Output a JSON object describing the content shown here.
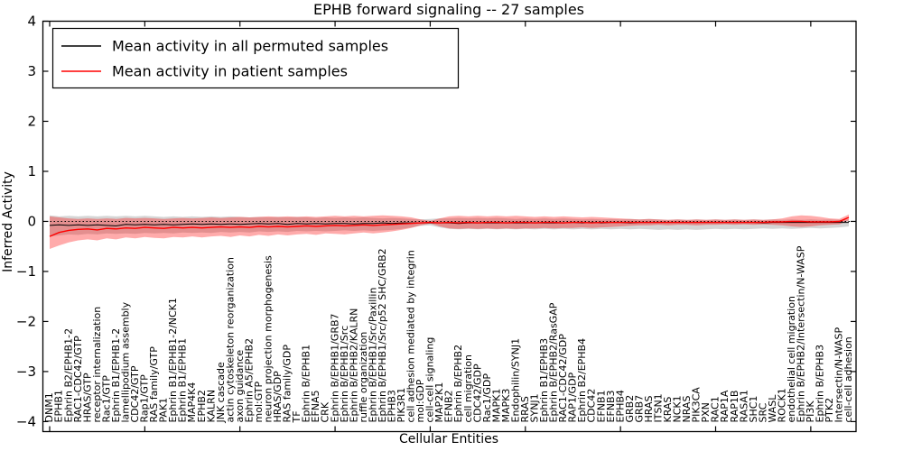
{
  "chart_data": {
    "type": "line",
    "title": "EPHB forward signaling -- 27 samples",
    "xlabel": "Cellular Entities",
    "ylabel": "Inferred Activity",
    "ylim": [
      -4.2,
      4.0
    ],
    "yticks": [
      -4,
      -3,
      -2,
      -1,
      0,
      1,
      2,
      3,
      4
    ],
    "x_tick_step": 10,
    "grid": false,
    "legend_position": "upper left",
    "reference_line": {
      "y": 0,
      "style": "dotted",
      "color": "#000000"
    },
    "categories": [
      "DNM1",
      "EPHB1",
      "Ephrin B2/EPHB1-2",
      "RAC1-CDC42/GTP",
      "HRAS/GTP",
      "receptor internalization",
      "Rac1/GTP",
      "Ephrin B1/EPHB1-2",
      "lamellipodium assembly",
      "CDC42/GTP",
      "Rap1/GTP",
      "RAS family/GTP",
      "PAK1",
      "Ephrin B1/EPHB1-2/NCK1",
      "Ephrin B1/EPHB1",
      "MAP4K4",
      "EPHB2",
      "KALRN",
      "JNK cascade",
      "actin cytoskeleton reorganization",
      "axon guidance",
      "Ephrin A5/EPHB2",
      "mol:GTP",
      "neuron projection morphogenesis",
      "HRAS/GDP",
      "RAS family/GDP",
      "TF",
      "Ephrin B/EPHB1",
      "EFNA5",
      "CRK",
      "Ephrin B/EPHB1/GRB7",
      "Ephrin B/EPHB1/Src",
      "Ephrin B/EPHB2/KALRN",
      "ruffle organization",
      "Ephrin B/EPHB1/Src/Paxillin",
      "Ephrin B/EPHB1/Src/p52 SHC/GRB2",
      "EPHB3",
      "PIK3R1",
      "cell adhesion mediated by integrin",
      "mol:GDP",
      "cell-cell signaling",
      "MAP2K1",
      "EFNB2",
      "Ephrin B/EPHB2",
      "cell migration",
      "CDC42/GDP",
      "Rac1/GDP",
      "MAPK1",
      "MAPK3",
      "Endophilin/SYNJ1",
      "RRAS",
      "SYNJ1",
      "Ephrin B1/EPHB3",
      "Ephrin B/EPHB2/RasGAP",
      "RAC1-CDC42/GDP",
      "RAP1/GDP",
      "Ephrin B2/EPHB4",
      "CDC42",
      "EFNB1",
      "EFNB3",
      "EPHB4",
      "GRB2",
      "GRB7",
      "HRAS",
      "ITSN1",
      "KRAS",
      "NCK1",
      "NRAS",
      "PIK3CA",
      "PXN",
      "RAC1",
      "RAP1A",
      "RAP1B",
      "RASA1",
      "SHC1",
      "SRC",
      "WASL",
      "ROCK1",
      "endothelial cell migration",
      "Ephrin B/EPHB2/Intersectin/N-WASP",
      "PI3K",
      "Ephrin B/EPHB3",
      "PTK2",
      "Intersectin/N-WASP",
      "cell-cell adhesion"
    ],
    "series": [
      {
        "name": "Mean activity in all permuted samples",
        "color": "#000000",
        "band_color": "#888888",
        "band_opacity": 0.35,
        "values": [
          -0.08,
          -0.07,
          -0.08,
          -0.07,
          -0.08,
          -0.07,
          -0.08,
          -0.09,
          -0.06,
          -0.07,
          -0.06,
          -0.07,
          -0.06,
          -0.07,
          -0.06,
          -0.05,
          -0.06,
          -0.05,
          -0.06,
          -0.05,
          -0.06,
          -0.05,
          -0.04,
          -0.05,
          -0.04,
          -0.06,
          -0.04,
          -0.05,
          -0.04,
          -0.05,
          -0.04,
          -0.04,
          -0.05,
          -0.04,
          -0.04,
          -0.03,
          -0.04,
          -0.03,
          -0.03,
          -0.03,
          -0.03,
          -0.03,
          -0.03,
          -0.04,
          -0.03,
          -0.03,
          -0.03,
          -0.03,
          -0.03,
          -0.03,
          -0.03,
          -0.03,
          -0.03,
          -0.03,
          -0.03,
          -0.02,
          -0.03,
          -0.02,
          -0.03,
          -0.02,
          -0.02,
          -0.03,
          -0.02,
          -0.02,
          -0.02,
          -0.02,
          -0.02,
          -0.02,
          -0.02,
          -0.02,
          -0.02,
          -0.02,
          -0.02,
          -0.02,
          -0.02,
          -0.03,
          -0.02,
          -0.02,
          -0.02,
          -0.02,
          -0.02,
          -0.02,
          -0.02,
          -0.02,
          -0.02
        ],
        "band_upper": [
          0.12,
          0.1,
          0.11,
          0.1,
          0.11,
          0.1,
          0.11,
          0.1,
          0.11,
          0.1,
          0.11,
          0.1,
          0.09,
          0.1,
          0.09,
          0.1,
          0.09,
          0.1,
          0.09,
          0.1,
          0.09,
          0.08,
          0.09,
          0.08,
          0.09,
          0.08,
          0.09,
          0.08,
          0.07,
          0.08,
          0.07,
          0.08,
          0.07,
          0.08,
          0.07,
          0.06,
          0.07,
          0.06,
          0.05,
          0.04,
          0.05,
          0.06,
          0.06,
          0.07,
          0.06,
          0.07,
          0.06,
          0.07,
          0.06,
          0.05,
          0.06,
          0.05,
          0.06,
          0.05,
          0.06,
          0.05,
          0.04,
          0.05,
          0.04,
          0.05,
          0.04,
          0.05,
          0.04,
          0.05,
          0.04,
          0.03,
          0.04,
          0.03,
          0.04,
          0.03,
          0.04,
          0.03,
          0.04,
          0.03,
          0.04,
          0.03,
          0.04,
          0.03,
          0.04,
          0.03,
          0.04,
          0.03,
          0.04,
          0.03,
          0.04
        ],
        "band_lower": [
          -0.3,
          -0.28,
          -0.26,
          -0.27,
          -0.25,
          -0.26,
          -0.24,
          -0.25,
          -0.24,
          -0.25,
          -0.23,
          -0.24,
          -0.23,
          -0.24,
          -0.22,
          -0.23,
          -0.22,
          -0.23,
          -0.21,
          -0.22,
          -0.21,
          -0.22,
          -0.2,
          -0.21,
          -0.2,
          -0.21,
          -0.19,
          -0.2,
          -0.19,
          -0.2,
          -0.19,
          -0.18,
          -0.19,
          -0.18,
          -0.19,
          -0.18,
          -0.17,
          -0.15,
          -0.12,
          -0.09,
          -0.08,
          -0.12,
          -0.15,
          -0.16,
          -0.15,
          -0.16,
          -0.15,
          -0.16,
          -0.15,
          -0.16,
          -0.15,
          -0.16,
          -0.15,
          -0.16,
          -0.15,
          -0.16,
          -0.15,
          -0.16,
          -0.15,
          -0.16,
          -0.15,
          -0.16,
          -0.15,
          -0.16,
          -0.17,
          -0.16,
          -0.17,
          -0.16,
          -0.17,
          -0.16,
          -0.15,
          -0.16,
          -0.15,
          -0.16,
          -0.15,
          -0.14,
          -0.15,
          -0.14,
          -0.15,
          -0.14,
          -0.13,
          -0.14,
          -0.13,
          -0.12,
          -0.1
        ]
      },
      {
        "name": "Mean activity in patient samples",
        "color": "#ff0000",
        "band_color": "#ff0000",
        "band_opacity": 0.33,
        "values": [
          -0.3,
          -0.22,
          -0.18,
          -0.16,
          -0.15,
          -0.17,
          -0.14,
          -0.15,
          -0.13,
          -0.14,
          -0.12,
          -0.13,
          -0.14,
          -0.12,
          -0.13,
          -0.12,
          -0.13,
          -0.12,
          -0.11,
          -0.12,
          -0.11,
          -0.12,
          -0.1,
          -0.11,
          -0.1,
          -0.11,
          -0.1,
          -0.09,
          -0.1,
          -0.09,
          -0.08,
          -0.09,
          -0.08,
          -0.07,
          -0.08,
          -0.07,
          -0.06,
          -0.05,
          -0.04,
          -0.03,
          -0.02,
          -0.03,
          -0.02,
          -0.03,
          -0.02,
          -0.03,
          -0.02,
          -0.02,
          -0.03,
          -0.02,
          -0.02,
          -0.03,
          -0.02,
          -0.02,
          -0.03,
          -0.02,
          -0.02,
          -0.03,
          -0.02,
          -0.02,
          -0.02,
          -0.02,
          -0.02,
          -0.02,
          -0.02,
          -0.02,
          -0.02,
          -0.02,
          -0.02,
          -0.02,
          -0.02,
          -0.02,
          -0.02,
          -0.02,
          -0.02,
          -0.02,
          -0.01,
          -0.01,
          0.0,
          0.0,
          -0.01,
          -0.01,
          -0.01,
          0.0,
          0.08
        ],
        "band_upper": [
          0.1,
          0.08,
          0.06,
          0.05,
          0.06,
          0.05,
          0.06,
          0.05,
          0.07,
          0.06,
          0.07,
          0.06,
          0.05,
          0.06,
          0.07,
          0.06,
          0.07,
          0.08,
          0.07,
          0.08,
          0.09,
          0.08,
          0.09,
          0.1,
          0.09,
          0.1,
          0.09,
          0.1,
          0.09,
          0.1,
          0.11,
          0.1,
          0.11,
          0.1,
          0.11,
          0.12,
          0.11,
          0.1,
          0.08,
          0.04,
          0.01,
          0.06,
          0.1,
          0.11,
          0.1,
          0.11,
          0.1,
          0.11,
          0.1,
          0.11,
          0.1,
          0.09,
          0.1,
          0.09,
          0.1,
          0.09,
          0.08,
          0.09,
          0.08,
          0.07,
          0.06,
          0.05,
          0.04,
          0.05,
          0.04,
          0.03,
          0.04,
          0.03,
          0.04,
          0.03,
          0.04,
          0.03,
          0.04,
          0.03,
          0.04,
          0.03,
          0.04,
          0.06,
          0.1,
          0.12,
          0.11,
          0.09,
          0.06,
          0.05,
          0.14
        ],
        "band_lower": [
          -0.55,
          -0.48,
          -0.42,
          -0.38,
          -0.36,
          -0.38,
          -0.34,
          -0.36,
          -0.32,
          -0.34,
          -0.31,
          -0.33,
          -0.34,
          -0.31,
          -0.32,
          -0.3,
          -0.32,
          -0.3,
          -0.29,
          -0.31,
          -0.28,
          -0.3,
          -0.27,
          -0.29,
          -0.26,
          -0.28,
          -0.26,
          -0.25,
          -0.27,
          -0.24,
          -0.25,
          -0.26,
          -0.24,
          -0.22,
          -0.24,
          -0.22,
          -0.2,
          -0.17,
          -0.13,
          -0.08,
          -0.04,
          -0.1,
          -0.14,
          -0.15,
          -0.14,
          -0.15,
          -0.14,
          -0.15,
          -0.14,
          -0.15,
          -0.14,
          -0.14,
          -0.13,
          -0.14,
          -0.13,
          -0.13,
          -0.12,
          -0.13,
          -0.12,
          -0.11,
          -0.1,
          -0.09,
          -0.08,
          -0.08,
          -0.07,
          -0.08,
          -0.07,
          -0.07,
          -0.08,
          -0.07,
          -0.07,
          -0.06,
          -0.07,
          -0.06,
          -0.07,
          -0.06,
          -0.07,
          -0.08,
          -0.1,
          -0.11,
          -0.1,
          -0.08,
          -0.07,
          -0.06,
          0.02
        ]
      }
    ]
  }
}
